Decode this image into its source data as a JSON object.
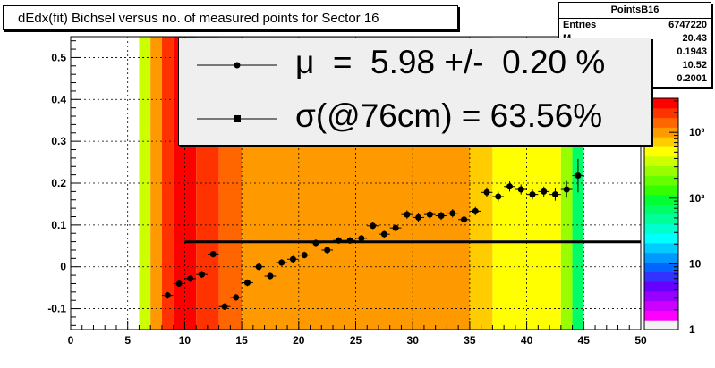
{
  "title": "dEdx(fit) Bichsel versus no. of measured points for Sector 16",
  "stats": {
    "name": "PointsB16",
    "rows": [
      {
        "label": "Entries",
        "value": "6747220"
      },
      {
        "label": "M",
        "value": "20.43"
      },
      {
        "label": "",
        "value": "0.1943"
      },
      {
        "label": "",
        "value": "10.52"
      },
      {
        "label": "",
        "value": "0.2001"
      }
    ]
  },
  "fit": {
    "mu_text": "μ  =  5.98 +/-  0.20 %",
    "sigma_text": "σ(@76cm) = 63.56%"
  },
  "colors": {
    "marker": "#000000",
    "frame": "#000000",
    "fit_line": "#000000"
  },
  "chart_data": {
    "type": "heatmap",
    "title": "dEdx(fit) Bichsel versus no. of measured points for Sector 16",
    "xlim": [
      0,
      50
    ],
    "ylim": [
      -0.15,
      0.55
    ],
    "x_ticks": [
      0,
      5,
      10,
      15,
      20,
      25,
      30,
      35,
      40,
      45,
      50
    ],
    "y_ticks": [
      -0.1,
      0,
      0.1,
      0.2,
      0.3,
      0.4,
      0.5
    ],
    "x_tick_labels": [
      "0",
      "5",
      "10",
      "15",
      "20",
      "25",
      "30",
      "35",
      "40",
      "45",
      "50"
    ],
    "y_tick_labels": [
      "-0.1",
      "0",
      "0.1",
      "0.2",
      "0.3",
      "0.4",
      "0.5"
    ],
    "grid": true,
    "colorbar": {
      "scale": "log",
      "tick_labels": [
        "1",
        "10",
        "10²",
        "10³"
      ],
      "colors": [
        "#f2f2f2",
        "#ff00ff",
        "#cc00ff",
        "#9900ff",
        "#6600ff",
        "#3333ff",
        "#0066ff",
        "#0099ff",
        "#00ccff",
        "#00ffff",
        "#00ffcc",
        "#00ff99",
        "#00ff66",
        "#00ff33",
        "#33ff00",
        "#66ff00",
        "#99ff00",
        "#ccff00",
        "#ffff00",
        "#ffcc00",
        "#ff9900",
        "#ff6600",
        "#ff3300",
        "#ff0000"
      ]
    },
    "heatmap_columns": [
      {
        "x0": 6,
        "x1": 7,
        "color": "#ccff00"
      },
      {
        "x0": 7,
        "x1": 8,
        "color": "#ff9900"
      },
      {
        "x0": 8,
        "x1": 9,
        "color": "#ff3300"
      },
      {
        "x0": 9,
        "x1": 11,
        "color": "#ff0000"
      },
      {
        "x0": 11,
        "x1": 13,
        "color": "#ff3300"
      },
      {
        "x0": 13,
        "x1": 15,
        "color": "#ff6600"
      },
      {
        "x0": 15,
        "x1": 35,
        "color": "#ff9900"
      },
      {
        "x0": 35,
        "x1": 37,
        "color": "#ffcc00"
      },
      {
        "x0": 37,
        "x1": 42,
        "color": "#ffff00"
      },
      {
        "x0": 42,
        "x1": 43,
        "color": "#ffff00"
      },
      {
        "x0": 43,
        "x1": 44,
        "color": "#99ff00"
      },
      {
        "x0": 44,
        "x1": 45,
        "color": "#00ff66"
      }
    ],
    "points": [
      {
        "x": 8.5,
        "y": -0.068,
        "err": 0.008
      },
      {
        "x": 9.5,
        "y": -0.04,
        "err": 0.008
      },
      {
        "x": 10.5,
        "y": -0.028,
        "err": 0.008
      },
      {
        "x": 11.5,
        "y": -0.018,
        "err": 0.008
      },
      {
        "x": 12.5,
        "y": 0.03,
        "err": 0.008
      },
      {
        "x": 13.5,
        "y": -0.095,
        "err": 0.008
      },
      {
        "x": 14.5,
        "y": -0.073,
        "err": 0.008
      },
      {
        "x": 15.5,
        "y": -0.038,
        "err": 0.008
      },
      {
        "x": 16.5,
        "y": 0.0,
        "err": 0.008
      },
      {
        "x": 17.5,
        "y": -0.022,
        "err": 0.008
      },
      {
        "x": 18.5,
        "y": 0.01,
        "err": 0.008
      },
      {
        "x": 19.5,
        "y": 0.018,
        "err": 0.008
      },
      {
        "x": 20.5,
        "y": 0.028,
        "err": 0.008
      },
      {
        "x": 21.5,
        "y": 0.057,
        "err": 0.008
      },
      {
        "x": 22.5,
        "y": 0.04,
        "err": 0.008
      },
      {
        "x": 23.5,
        "y": 0.063,
        "err": 0.008
      },
      {
        "x": 24.5,
        "y": 0.063,
        "err": 0.008
      },
      {
        "x": 25.5,
        "y": 0.068,
        "err": 0.008
      },
      {
        "x": 26.5,
        "y": 0.098,
        "err": 0.008
      },
      {
        "x": 27.5,
        "y": 0.078,
        "err": 0.008
      },
      {
        "x": 28.5,
        "y": 0.093,
        "err": 0.008
      },
      {
        "x": 29.5,
        "y": 0.125,
        "err": 0.01
      },
      {
        "x": 30.5,
        "y": 0.118,
        "err": 0.01
      },
      {
        "x": 31.5,
        "y": 0.125,
        "err": 0.01
      },
      {
        "x": 32.5,
        "y": 0.122,
        "err": 0.01
      },
      {
        "x": 33.5,
        "y": 0.128,
        "err": 0.01
      },
      {
        "x": 34.5,
        "y": 0.113,
        "err": 0.01
      },
      {
        "x": 35.5,
        "y": 0.133,
        "err": 0.01
      },
      {
        "x": 36.5,
        "y": 0.178,
        "err": 0.012
      },
      {
        "x": 37.5,
        "y": 0.168,
        "err": 0.012
      },
      {
        "x": 38.5,
        "y": 0.192,
        "err": 0.012
      },
      {
        "x": 39.5,
        "y": 0.185,
        "err": 0.012
      },
      {
        "x": 40.5,
        "y": 0.173,
        "err": 0.012
      },
      {
        "x": 41.5,
        "y": 0.18,
        "err": 0.012
      },
      {
        "x": 42.5,
        "y": 0.173,
        "err": 0.015
      },
      {
        "x": 43.5,
        "y": 0.185,
        "err": 0.02
      },
      {
        "x": 44.5,
        "y": 0.218,
        "err": 0.04
      }
    ],
    "fit_line": {
      "x0": 10,
      "x1": 50,
      "y": 0.0598
    }
  }
}
